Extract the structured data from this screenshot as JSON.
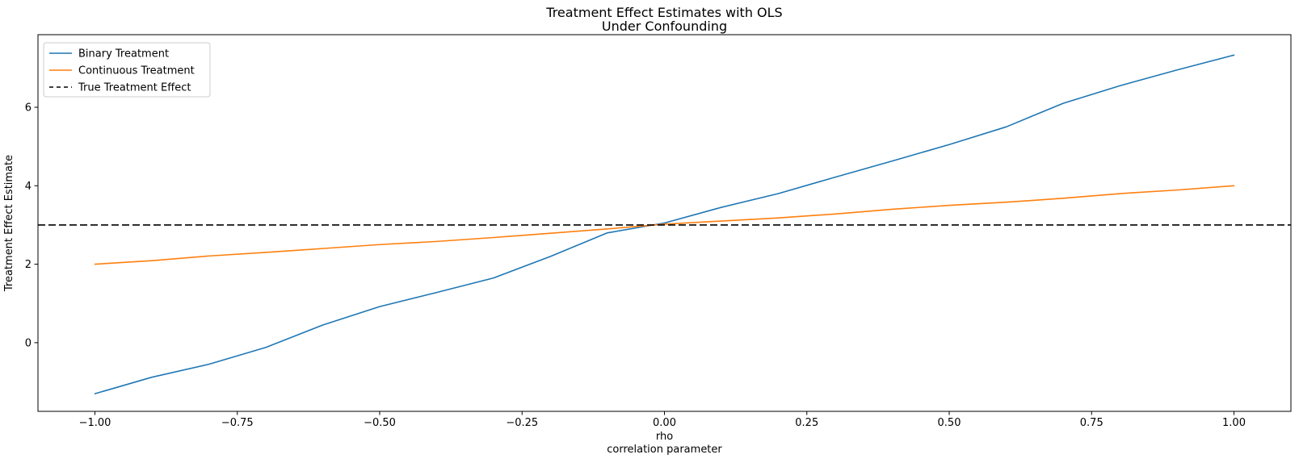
{
  "chart_data": {
    "type": "line",
    "title_lines": [
      "Treatment Effect Estimates with OLS",
      "Under Confounding"
    ],
    "xlabel_lines": [
      "rho",
      "correlation parameter"
    ],
    "ylabel": "Treatment Effect Estimate",
    "xlim": [
      -1.1,
      1.1
    ],
    "ylim": [
      -1.75,
      7.85
    ],
    "grid": false,
    "legend_position": "upper left",
    "background_color": "#ffffff",
    "axis_color": "#000000",
    "x_ticks": [
      -1.0,
      -0.75,
      -0.5,
      -0.25,
      0.0,
      0.25,
      0.5,
      0.75,
      1.0
    ],
    "x_tick_labels": [
      "−1.00",
      "−0.75",
      "−0.50",
      "−0.25",
      "0.00",
      "0.25",
      "0.50",
      "0.75",
      "1.00"
    ],
    "y_ticks": [
      0,
      2,
      4,
      6
    ],
    "y_tick_labels": [
      "0",
      "2",
      "4",
      "6"
    ],
    "x": [
      -1.0,
      -0.9,
      -0.8,
      -0.7,
      -0.6,
      -0.5,
      -0.4,
      -0.3,
      -0.2,
      -0.1,
      0.0,
      0.1,
      0.2,
      0.3,
      0.4,
      0.5,
      0.6,
      0.7,
      0.8,
      0.9,
      1.0
    ],
    "series": [
      {
        "name": "Binary Treatment",
        "color": "#1f77b4",
        "style": "solid",
        "values": [
          -1.3,
          -0.88,
          -0.55,
          -0.12,
          0.45,
          0.92,
          1.28,
          1.65,
          2.2,
          2.8,
          3.05,
          3.45,
          3.8,
          4.22,
          4.63,
          5.05,
          5.5,
          6.1,
          6.55,
          6.95,
          7.33
        ]
      },
      {
        "name": "Continuous Treatment",
        "color": "#ff7f0e",
        "style": "solid",
        "values": [
          2.0,
          2.09,
          2.21,
          2.3,
          2.4,
          2.5,
          2.58,
          2.68,
          2.79,
          2.9,
          3.02,
          3.1,
          3.18,
          3.28,
          3.4,
          3.5,
          3.58,
          3.68,
          3.8,
          3.89,
          4.0
        ]
      },
      {
        "name": "True Treatment Effect",
        "color": "#000000",
        "style": "dashed",
        "kind": "hline",
        "value": 3.0
      }
    ]
  }
}
